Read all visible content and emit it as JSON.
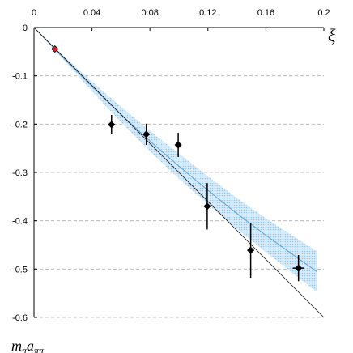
{
  "chart_data": {
    "type": "scatter",
    "xlabel": "ξ",
    "ylabel": "m_π a_ππ",
    "ylabel_parts": {
      "main": "m",
      "sub1": "π",
      "main2": "a",
      "sub2": "ππ"
    },
    "xlim": [
      0,
      0.2
    ],
    "ylim": [
      -0.6,
      0
    ],
    "x_ticks": [
      0,
      0.04,
      0.08,
      0.12,
      0.16,
      0.2
    ],
    "x_tick_labels": [
      "0",
      "0.04",
      "0.08",
      "0.12",
      "0.16",
      "0.2"
    ],
    "y_ticks": [
      0,
      -0.1,
      -0.2,
      -0.3,
      -0.4,
      -0.5,
      -0.6
    ],
    "y_tick_labels": [
      "0",
      "-0.1",
      "-0.2",
      "-0.3",
      "-0.4",
      "-0.5",
      "-0.6"
    ],
    "grid": {
      "horizontal": true,
      "style": "dashed",
      "color": "#b0b0b0"
    },
    "series": [
      {
        "kind": "points",
        "color": "#000000",
        "marker": "diamond",
        "points": [
          {
            "x": 0.0535,
            "y": -0.201,
            "yerr": 0.02
          },
          {
            "x": 0.0775,
            "y": -0.221,
            "yerr": 0.022
          },
          {
            "x": 0.0995,
            "y": -0.243,
            "yerr": 0.025
          },
          {
            "x": 0.1195,
            "y": -0.37,
            "yerr": 0.048
          },
          {
            "x": 0.1495,
            "y": -0.461,
            "yerr": 0.057
          },
          {
            "x": 0.1825,
            "y": -0.498,
            "yerr": 0.027,
            "xerr": 0.004
          }
        ]
      },
      {
        "kind": "physical-point",
        "color": "#e0202a",
        "marker": "diamond",
        "points": [
          {
            "x": 0.0144,
            "y": -0.0445
          }
        ]
      },
      {
        "kind": "fit-band",
        "color": "#8cc4ec",
        "line_color": "#5aa0d8",
        "x": [
          0,
          0.02,
          0.04,
          0.06,
          0.08,
          0.1,
          0.12,
          0.14,
          0.16,
          0.18,
          0.195
        ],
        "center": [
          0,
          -0.062,
          -0.122,
          -0.18,
          -0.235,
          -0.287,
          -0.337,
          -0.385,
          -0.43,
          -0.473,
          -0.505
        ],
        "half_width": [
          0,
          0.004,
          0.01,
          0.016,
          0.021,
          0.026,
          0.029,
          0.032,
          0.035,
          0.039,
          0.042
        ]
      },
      {
        "kind": "leading-order-line",
        "color": "#000000",
        "x": [
          0,
          0.2
        ],
        "y": [
          0,
          -0.6
        ]
      }
    ]
  }
}
